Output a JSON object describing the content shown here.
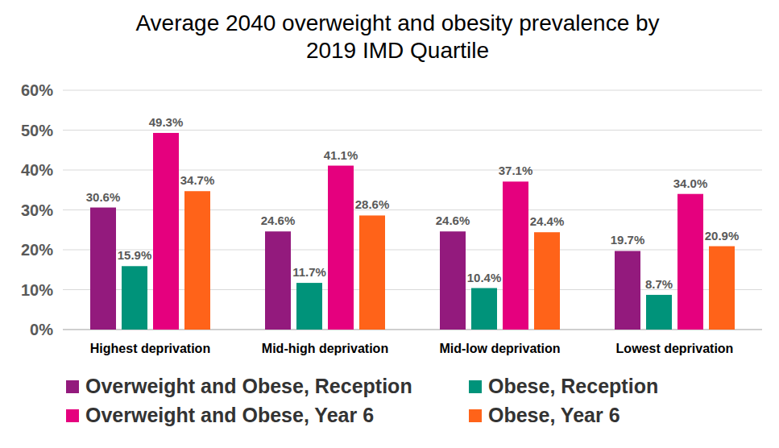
{
  "chart_data": {
    "type": "bar",
    "title": "Average 2040 overweight and obesity prevalence by 2019 IMD Quartile",
    "categories": [
      "Highest deprivation",
      "Mid-high deprivation",
      "Mid-low deprivation",
      "Lowest deprivation"
    ],
    "series": [
      {
        "name": "Overweight and Obese, Reception",
        "color": "#931a7d",
        "values": [
          30.6,
          24.6,
          24.6,
          19.7
        ],
        "value_labels": [
          "30.6%",
          "24.6%",
          "24.6%",
          "19.7%"
        ]
      },
      {
        "name": "Obese, Reception",
        "color": "#00937a",
        "values": [
          15.9,
          11.7,
          10.4,
          8.7
        ],
        "value_labels": [
          "15.9%",
          "11.7%",
          "10.4%",
          "8.7%"
        ]
      },
      {
        "name": "Overweight and Obese, Year 6",
        "color": "#e5007e",
        "values": [
          49.3,
          41.1,
          37.1,
          34.0
        ],
        "value_labels": [
          "49.3%",
          "41.1%",
          "37.1%",
          "34.0%"
        ]
      },
      {
        "name": "Obese, Year 6",
        "color": "#ff6319",
        "values": [
          34.7,
          28.6,
          24.4,
          20.9
        ],
        "value_labels": [
          "34.7%",
          "28.6%",
          "24.4%",
          "20.9%"
        ]
      }
    ],
    "ylim": [
      0,
      60
    ],
    "yticks": [
      {
        "value": 0,
        "label": "0%"
      },
      {
        "value": 10,
        "label": "10%"
      },
      {
        "value": 20,
        "label": "20%"
      },
      {
        "value": 30,
        "label": "30%"
      },
      {
        "value": 40,
        "label": "40%"
      },
      {
        "value": 50,
        "label": "50%"
      },
      {
        "value": 60,
        "label": "60%"
      }
    ],
    "grid": true,
    "legend": "bottom",
    "data_labels": true
  }
}
